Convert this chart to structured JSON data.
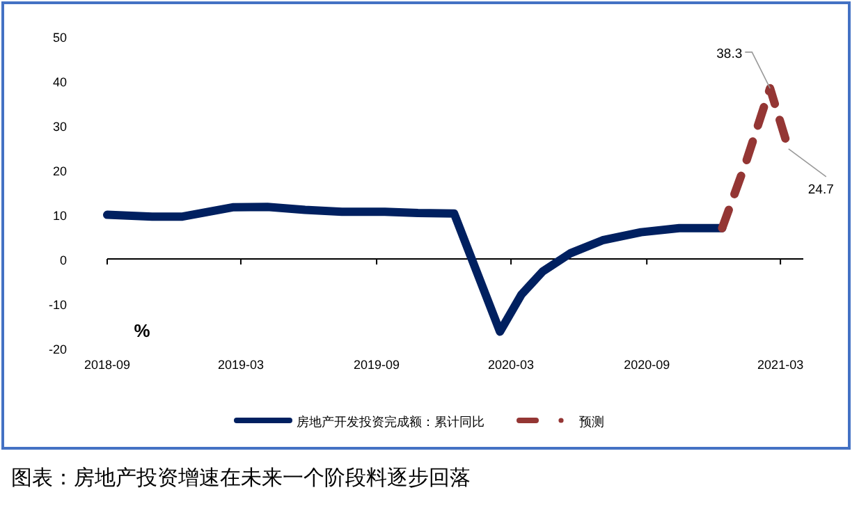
{
  "chart_data": {
    "type": "line",
    "ylabel": "%",
    "xlim": [
      "2018-09",
      "2021-04"
    ],
    "ylim": [
      -20,
      50
    ],
    "xticks": [
      "2018-09",
      "2019-03",
      "2019-09",
      "2020-03",
      "2020-09",
      "2021-03"
    ],
    "yticks": [
      -20,
      -10,
      0,
      10,
      20,
      30,
      40,
      50
    ],
    "legend": "bottom",
    "marker": "none",
    "series": [
      {
        "name": "房地产开发投资完成额：累计同比",
        "color": "#002060",
        "line_style": "solid",
        "x": [
          "2018-09-01",
          "2018-11-01",
          "2018-12-12",
          "2019-02-18",
          "2019-04-06",
          "2019-05-27",
          "2019-07-16",
          "2019-09-12",
          "2019-10-27",
          "2019-12-15",
          "2020-02-15",
          "2020-03-15",
          "2020-04-13",
          "2020-05-21",
          "2020-07-03",
          "2020-08-24",
          "2020-10-15",
          "2020-12-12"
        ],
        "values": [
          9.9,
          9.5,
          9.5,
          11.6,
          11.7,
          11.0,
          10.6,
          10.6,
          10.3,
          10.2,
          -16.3,
          -8.0,
          -2.8,
          1.3,
          4.2,
          6.0,
          6.9,
          6.9
        ]
      },
      {
        "name": "预测",
        "color": "#943634",
        "line_style": "dashed",
        "x": [
          "2020-12-12",
          "2021-01-13",
          "2021-02-15",
          "2021-03-12"
        ],
        "values": [
          6.9,
          21.5,
          38.3,
          24.7
        ]
      }
    ],
    "annotations": [
      {
        "text": "38.3",
        "x": "2021-02-15",
        "y": 38.3
      },
      {
        "text": "24.7",
        "x": "2021-03-12",
        "y": 24.7
      },
      "图表：房地产投资增速在未来一个阶段料逐步回落"
    ]
  }
}
